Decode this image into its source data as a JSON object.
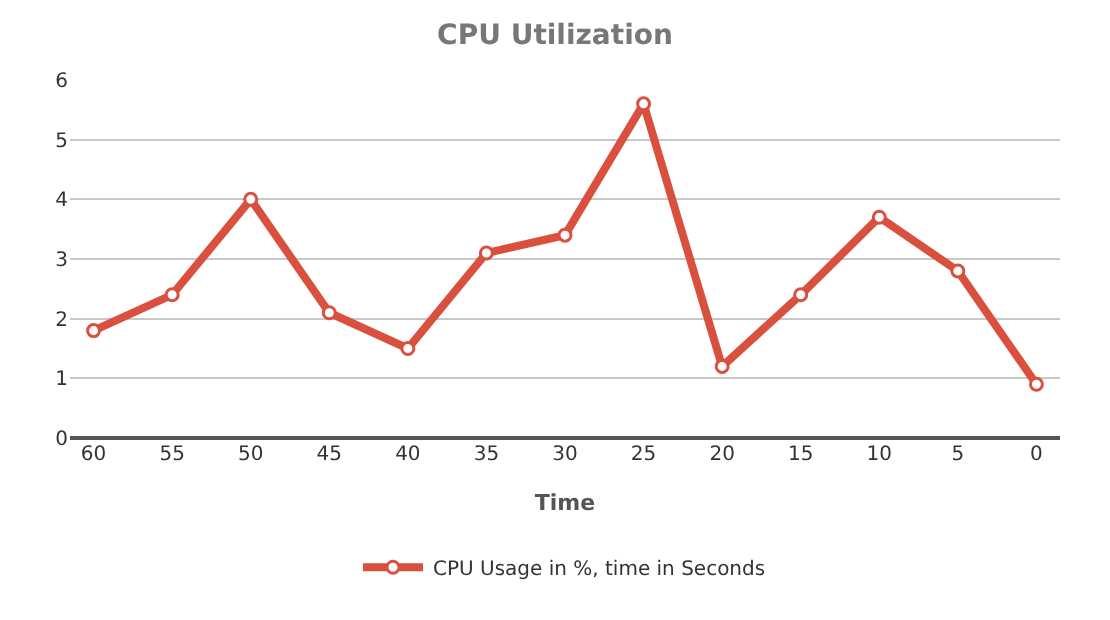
{
  "chart_data": {
    "type": "line",
    "title": "CPU Utilization",
    "xlabel": "Time",
    "categories": [
      "60",
      "55",
      "50",
      "45",
      "40",
      "35",
      "30",
      "25",
      "20",
      "15",
      "10",
      "5",
      "0"
    ],
    "series": [
      {
        "name": "CPU Usage in %, time in Seconds",
        "color": "#d9503f",
        "values": [
          1.8,
          2.4,
          4.0,
          2.1,
          1.5,
          3.1,
          3.4,
          5.6,
          1.2,
          2.4,
          3.7,
          2.8,
          0.9
        ]
      }
    ],
    "ylim": [
      0,
      6
    ],
    "yticks": [
      0,
      1,
      2,
      3,
      4,
      5,
      6
    ],
    "grid": "y",
    "legend": "bottom",
    "marker": "circle",
    "line_style": "solid"
  }
}
